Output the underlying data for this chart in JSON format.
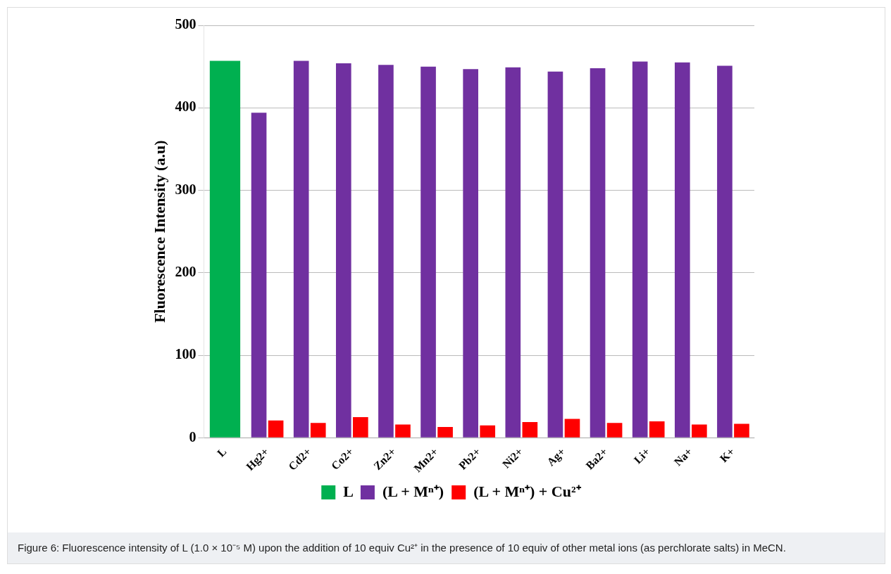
{
  "chart_data": {
    "type": "bar",
    "categories": [
      "L",
      "Hg2+",
      "Cd2+",
      "Co2+",
      "Zn2+",
      "Mn2+",
      "Pb2+",
      "Ni2+",
      "Ag+",
      "Ba2+",
      "Li+",
      "Na+",
      "K+"
    ],
    "series": [
      {
        "name": "L",
        "color": "#00b050",
        "values": [
          457,
          null,
          null,
          null,
          null,
          null,
          null,
          null,
          null,
          null,
          null,
          null,
          null
        ]
      },
      {
        "name": "(L + Mⁿ⁺)",
        "color": "#7030a0",
        "values": [
          null,
          394,
          457,
          454,
          452,
          450,
          447,
          449,
          444,
          448,
          456,
          455,
          451
        ]
      },
      {
        "name": "(L + Mⁿ⁺) + Cu²⁺",
        "color": "#ff0000",
        "values": [
          null,
          21,
          18,
          25,
          16,
          13,
          15,
          19,
          23,
          18,
          20,
          16,
          17
        ]
      }
    ],
    "ylabel": "Fluorescence Intensity (a.u)",
    "ylim": [
      0,
      500
    ],
    "yticks": [
      0,
      100,
      200,
      300,
      400,
      500
    ],
    "grid": "y",
    "legend": "bottom",
    "annotations": [
      "Figure 6: Fluorescence intensity of L (1.0 × 10⁻⁵ M) upon the addition of 10 equiv Cu²⁺ in the presence of 10 equiv of other metal ions (as perchlorate salts) in MeCN."
    ]
  }
}
